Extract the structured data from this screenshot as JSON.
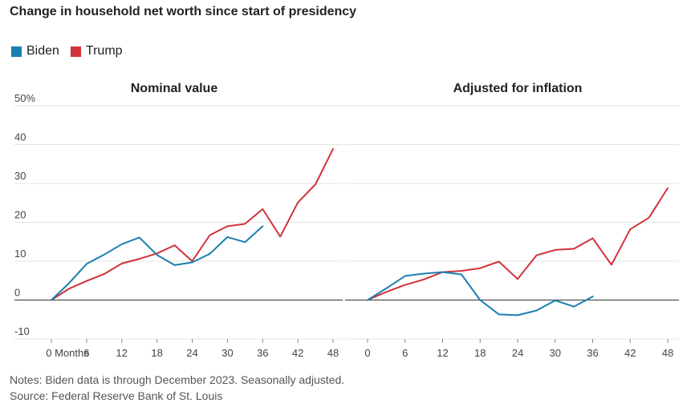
{
  "title": "Change in household net worth since start of presidency",
  "legend": [
    {
      "name": "Biden",
      "color": "#1a7fb0"
    },
    {
      "name": "Trump",
      "color": "#d1323a"
    }
  ],
  "notes": "Notes: Biden data is through December 2023. Seasonally adjusted.",
  "source": "Source: Federal Reserve Bank of St. Louis",
  "chart_data": [
    {
      "type": "line",
      "title": "Nominal value",
      "xlabel": "",
      "ylabel": "",
      "x_ticks": [
        0,
        6,
        12,
        18,
        24,
        30,
        36,
        42,
        48
      ],
      "x_tick_labels": [
        "0 Months",
        "6",
        "12",
        "18",
        "24",
        "30",
        "36",
        "42",
        "48"
      ],
      "y_ticks": [
        -10,
        0,
        10,
        20,
        30,
        40,
        50
      ],
      "y_tick_labels": [
        "-10",
        "0",
        "10",
        "20",
        "30",
        "40",
        "50%"
      ],
      "xlim": [
        0,
        48
      ],
      "ylim": [
        -10,
        50
      ],
      "grid": true,
      "series": [
        {
          "name": "Biden",
          "color": "#1a7fb0",
          "x": [
            0,
            3,
            6,
            9,
            12,
            15,
            18,
            21,
            24,
            27,
            30,
            33,
            36
          ],
          "y": [
            0,
            4.3,
            9.3,
            11.7,
            14.4,
            16.1,
            11.6,
            9.0,
            9.7,
            11.9,
            16.2,
            14.9,
            19.0
          ]
        },
        {
          "name": "Trump",
          "color": "#d1323a",
          "x": [
            0,
            3,
            6,
            9,
            12,
            15,
            18,
            21,
            24,
            27,
            30,
            33,
            36,
            39,
            42,
            45,
            48
          ],
          "y": [
            0,
            2.9,
            4.9,
            6.7,
            9.4,
            10.6,
            12.0,
            14.1,
            10.0,
            16.7,
            19.0,
            19.6,
            23.4,
            16.3,
            25.1,
            29.8,
            38.9
          ]
        }
      ]
    },
    {
      "type": "line",
      "title": "Adjusted for inflation",
      "xlabel": "",
      "ylabel": "",
      "x_ticks": [
        0,
        6,
        12,
        18,
        24,
        30,
        36,
        42,
        48
      ],
      "x_tick_labels": [
        "0",
        "6",
        "12",
        "18",
        "24",
        "30",
        "36",
        "42",
        "48"
      ],
      "xlim": [
        0,
        48
      ],
      "ylim": [
        -10,
        50
      ],
      "grid": true,
      "series": [
        {
          "name": "Biden",
          "color": "#1a7fb0",
          "x": [
            0,
            3,
            6,
            9,
            12,
            15,
            18,
            21,
            24,
            27,
            30,
            33,
            36
          ],
          "y": [
            0,
            3.0,
            6.2,
            6.8,
            7.2,
            6.6,
            0.0,
            -3.7,
            -3.9,
            -2.7,
            -0.1,
            -1.7,
            0.9
          ]
        },
        {
          "name": "Trump",
          "color": "#d1323a",
          "x": [
            0,
            3,
            6,
            9,
            12,
            15,
            18,
            21,
            24,
            27,
            30,
            33,
            36,
            39,
            42,
            45,
            48
          ],
          "y": [
            0,
            2.1,
            3.9,
            5.3,
            7.2,
            7.5,
            8.2,
            9.9,
            5.4,
            11.5,
            12.9,
            13.2,
            15.9,
            9.1,
            18.2,
            21.2,
            28.8
          ]
        }
      ]
    }
  ]
}
